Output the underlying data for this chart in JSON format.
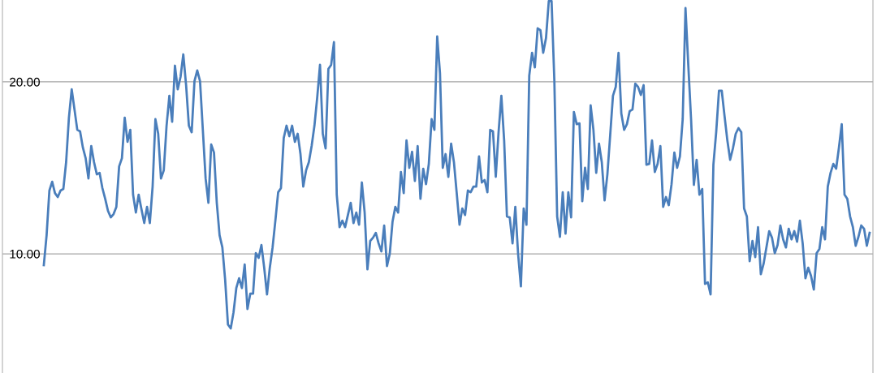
{
  "chart_data": {
    "type": "line",
    "categories": [
      null,
      null,
      null,
      null,
      null,
      null,
      null,
      null,
      null,
      null,
      null,
      null,
      null,
      null,
      null,
      null,
      null,
      null,
      null,
      null,
      null,
      null,
      null,
      null,
      null,
      null,
      null,
      null,
      null,
      null,
      null,
      null,
      null,
      null,
      null,
      null,
      null,
      null,
      null,
      null,
      null,
      null,
      null,
      null,
      null,
      null,
      null,
      null,
      null,
      null,
      null,
      null,
      null,
      null,
      null,
      null,
      null,
      null,
      null,
      null,
      null,
      null,
      null,
      null,
      null,
      null,
      null,
      null,
      null,
      null,
      null,
      null,
      null,
      null,
      null,
      null,
      null,
      null,
      null,
      null,
      null,
      null,
      null,
      null,
      null,
      null,
      null,
      null,
      null,
      null,
      null,
      null,
      null,
      null,
      null,
      null,
      null,
      null,
      null,
      null,
      null,
      null,
      null,
      null,
      null,
      null,
      null,
      null,
      null,
      null,
      null,
      null,
      null,
      null,
      null,
      null,
      null,
      null,
      null,
      null,
      null,
      null,
      null,
      null,
      null,
      null,
      null,
      null,
      null,
      null,
      null,
      null,
      null,
      null,
      null,
      null,
      null,
      null,
      null,
      null,
      null,
      null,
      null,
      null,
      null,
      null,
      null,
      null,
      null,
      null,
      null,
      null,
      null,
      null,
      null,
      null,
      null,
      null,
      null,
      null,
      null,
      null,
      null,
      null,
      null,
      null,
      null,
      null,
      null,
      null,
      null,
      null,
      null,
      null,
      null,
      null,
      null,
      null,
      null,
      null,
      null,
      null,
      null,
      null,
      null,
      null,
      null,
      null,
      null,
      null,
      null,
      null,
      null,
      null,
      null,
      null,
      null,
      null,
      null,
      null,
      null,
      null,
      null,
      null,
      null,
      null,
      null,
      null,
      null,
      null,
      null,
      null,
      null,
      null,
      null,
      null,
      null,
      null,
      null,
      null,
      null,
      null,
      null,
      null,
      null,
      null,
      null,
      null,
      null,
      null,
      null,
      null,
      null,
      null,
      null,
      null,
      null,
      null,
      null,
      null,
      null,
      null,
      null,
      null,
      null,
      null,
      null,
      null,
      null,
      null,
      null,
      null,
      null,
      null,
      null,
      null,
      null,
      null,
      null,
      null,
      null,
      null,
      null,
      null,
      null,
      null,
      null,
      null,
      null,
      null,
      null,
      null,
      null,
      null,
      null,
      null,
      null,
      null,
      null,
      null,
      null,
      null,
      null,
      null,
      null,
      null,
      null,
      null,
      null,
      null,
      null,
      null,
      null,
      null,
      null,
      null,
      null
    ],
    "series": [
      {
        "color": "#4a7ebb",
        "values": [
          9.34,
          11.08,
          13.68,
          14.19,
          13.53,
          13.3,
          13.68,
          13.77,
          15.33,
          17.92,
          19.57,
          18.39,
          17.21,
          17.12,
          16.18,
          15.56,
          14.38,
          16.27,
          15.33,
          14.62,
          14.71,
          13.82,
          13.2,
          12.5,
          12.12,
          12.31,
          12.73,
          15.09,
          15.56,
          17.92,
          16.51,
          17.21,
          13.44,
          12.4,
          13.44,
          12.59,
          11.79,
          12.73,
          11.79,
          13.91,
          17.83,
          16.98,
          14.38,
          14.85,
          17.45,
          19.19,
          17.68,
          20.94,
          19.57,
          20.28,
          21.6,
          19.81,
          17.45,
          17.07,
          20.04,
          20.66,
          20.04,
          17.21,
          14.38,
          12.97,
          16.36,
          15.89,
          12.97,
          11.08,
          10.37,
          8.49,
          5.89,
          5.66,
          6.6,
          8.01,
          8.58,
          8.01,
          9.38,
          6.79,
          7.68,
          7.68,
          10.04,
          9.76,
          10.51,
          9.19,
          7.64,
          9.19,
          10.37,
          11.93,
          13.58,
          13.82,
          16.74,
          17.45,
          16.84,
          17.45,
          16.51,
          16.98,
          15.8,
          13.91,
          14.85,
          15.33,
          16.27,
          17.45,
          19.1,
          20.99,
          16.98,
          16.13,
          20.75,
          20.99,
          22.31,
          13.44,
          11.55,
          11.93,
          11.55,
          12.26,
          12.97,
          11.79,
          12.4,
          11.69,
          14.15,
          12.4,
          9.1,
          10.75,
          10.94,
          11.22,
          10.61,
          10.14,
          11.65,
          9.29,
          10.0,
          11.88,
          12.73,
          12.4,
          14.76,
          13.53,
          16.6,
          15.0,
          15.94,
          14.24,
          16.27,
          13.2,
          14.95,
          14.05,
          15.23,
          17.83,
          17.21,
          22.64,
          20.51,
          15.0,
          15.8,
          14.48,
          16.41,
          15.33,
          13.53,
          11.69,
          12.64,
          12.26,
          13.68,
          13.58,
          13.91,
          13.91,
          15.66,
          14.15,
          14.29,
          13.58,
          17.21,
          17.12,
          14.48,
          17.07,
          19.19,
          16.6,
          12.17,
          12.12,
          10.61,
          12.73,
          10.0,
          8.11,
          12.64,
          11.69,
          20.37,
          21.69,
          20.84,
          23.11,
          23.01,
          21.69,
          22.54,
          24.7,
          24.7,
          20.04,
          12.17,
          10.99,
          13.58,
          11.17,
          13.58,
          12.12,
          18.25,
          17.54,
          17.59,
          13.06,
          15.0,
          13.77,
          18.63,
          17.21,
          14.71,
          16.41,
          15.33,
          13.11,
          14.62,
          16.88,
          19.19,
          19.71,
          21.69,
          18.16,
          17.21,
          17.54,
          18.3,
          18.39,
          19.9,
          19.71,
          19.24,
          19.81,
          15.18,
          15.23,
          16.6,
          14.76,
          15.23,
          16.27,
          12.73,
          13.3,
          12.83,
          14.05,
          15.89,
          15.0,
          15.66,
          17.83,
          24.29,
          20.99,
          17.83,
          14.01,
          15.47,
          13.44,
          13.77,
          8.25,
          8.34,
          7.64,
          15.18,
          17.07,
          19.48,
          19.48,
          18.01,
          16.6,
          15.47,
          16.13,
          16.98,
          17.31,
          17.07,
          12.64,
          12.17,
          9.57,
          10.75,
          9.81,
          11.55,
          8.82,
          9.43,
          10.37,
          11.32,
          10.94,
          10.04,
          10.51,
          11.65,
          10.84,
          10.37,
          11.46,
          10.84,
          11.32,
          10.7,
          11.93,
          10.61,
          8.58,
          9.19,
          8.72,
          7.92,
          10.04,
          10.28,
          11.55,
          10.84,
          13.91,
          14.71,
          15.23,
          14.95,
          16.18,
          17.54,
          13.44,
          13.2,
          12.17,
          11.55,
          10.47,
          10.99,
          11.65,
          11.46,
          10.47,
          11.22
        ]
      }
    ],
    "ylim": [
      3.07,
      24.76
    ],
    "yticks": [
      {
        "value": 10,
        "label": "10.00"
      },
      {
        "value": 20,
        "label": "20.00"
      }
    ],
    "grid": "y",
    "tick_labels": "y",
    "marker": "none",
    "line_style": "solid"
  }
}
